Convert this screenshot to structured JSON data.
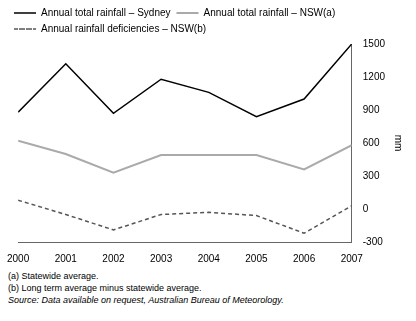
{
  "chart_data": {
    "type": "line",
    "x": [
      2000,
      2001,
      2002,
      2003,
      2004,
      2005,
      2006,
      2007
    ],
    "series": [
      {
        "name": "Annual total rainfall – Sydney",
        "color": "#000000",
        "line_style": "solid",
        "values": [
          880,
          1320,
          870,
          1180,
          1060,
          840,
          1000,
          1500
        ]
      },
      {
        "name": "Annual total rainfall – NSW(a)",
        "color": "#aaaaaa",
        "line_style": "solid",
        "values": [
          620,
          500,
          330,
          490,
          490,
          490,
          360,
          580
        ]
      },
      {
        "name": "Annual rainfall deficiencies – NSW(b)",
        "color": "#555555",
        "line_style": "dashed",
        "values": [
          80,
          -50,
          -190,
          -50,
          -30,
          -60,
          -220,
          30
        ]
      }
    ],
    "xlim": [
      2000,
      2007
    ],
    "xticks": [
      2000,
      2001,
      2002,
      2003,
      2004,
      2005,
      2006,
      2007
    ],
    "ylim": [
      -300,
      1500
    ],
    "yticks": [
      -300,
      0,
      300,
      600,
      900,
      1200,
      1500
    ],
    "ylabel": "mm",
    "grid": false,
    "legend": "upper left",
    "annotations": [
      "(a) Statewide average.",
      "(b) Long term average minus statewide average.",
      "Source: Data available on request, Australian Bureau of Meteorology."
    ]
  }
}
